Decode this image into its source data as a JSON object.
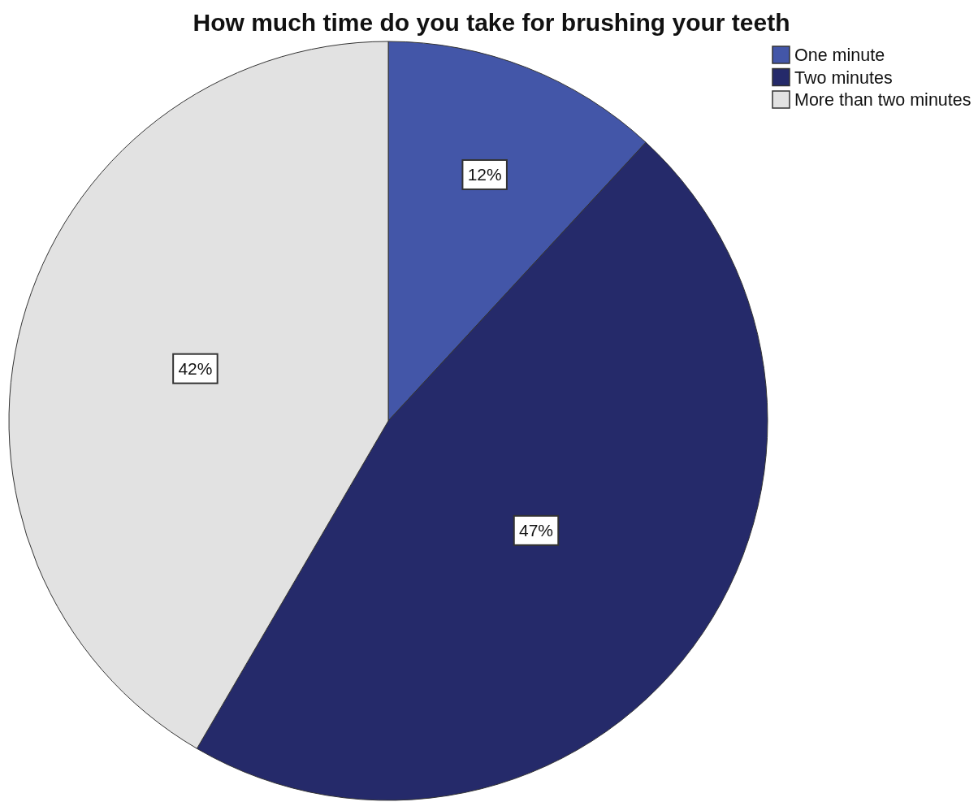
{
  "chart_data": {
    "type": "pie",
    "title": "How much time do you take for brushing your teeth",
    "categories": [
      "One minute",
      "Two minutes",
      "More than two minutes"
    ],
    "values": [
      12,
      47,
      42
    ],
    "colors": [
      "#4356a8",
      "#252a6a",
      "#e2e2e2"
    ],
    "value_labels": [
      "12%",
      "47%",
      "42%"
    ],
    "legend": "top right"
  }
}
